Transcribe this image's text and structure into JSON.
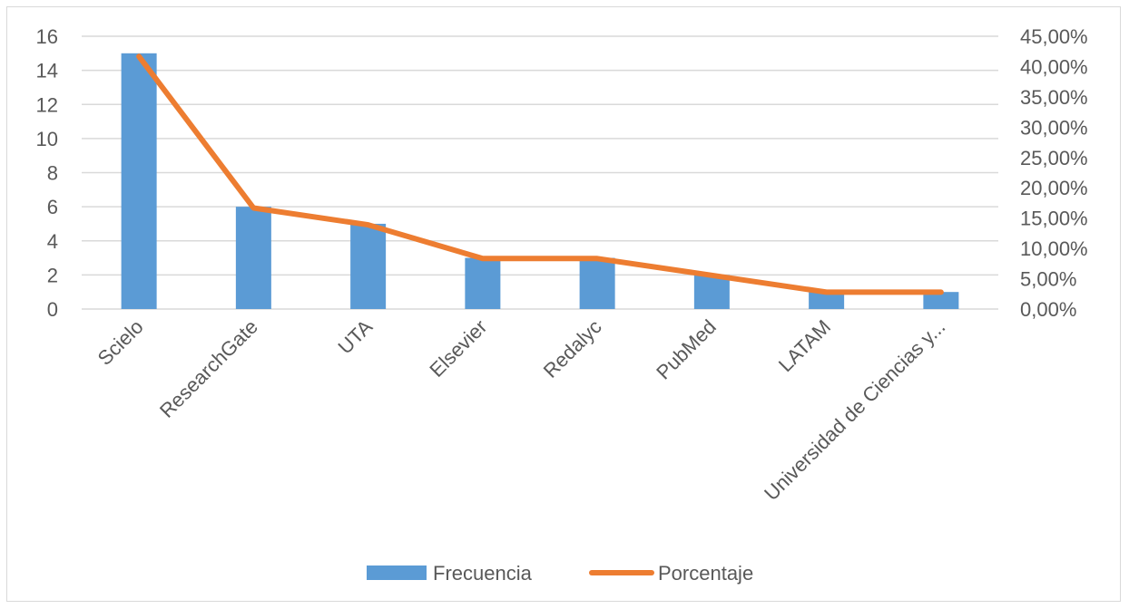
{
  "chart_data": {
    "type": "bar",
    "categories": [
      "Scielo",
      "ResearchGate",
      "UTA",
      "Elsevier",
      "Redalyc",
      "PubMed",
      "LATAM",
      "Universidad de Ciencias y..."
    ],
    "series": [
      {
        "name": "Frecuencia",
        "type": "bar",
        "axis": "left",
        "values": [
          15,
          6,
          5,
          3,
          3,
          2,
          1,
          1
        ]
      },
      {
        "name": "Porcentaje",
        "type": "line",
        "axis": "right",
        "values": [
          41.67,
          16.67,
          13.89,
          8.33,
          8.33,
          5.56,
          2.78,
          2.78
        ]
      }
    ],
    "y_left": {
      "min": 0,
      "max": 16,
      "step": 2,
      "ticks": [
        "0",
        "2",
        "4",
        "6",
        "8",
        "10",
        "12",
        "14",
        "16"
      ]
    },
    "y_right": {
      "min": 0,
      "max": 45,
      "step": 5,
      "ticks": [
        "0,00%",
        "5,00%",
        "10,00%",
        "15,00%",
        "20,00%",
        "25,00%",
        "30,00%",
        "35,00%",
        "40,00%",
        "45,00%"
      ]
    },
    "grid": true,
    "legend_position": "bottom",
    "colors": {
      "bar": "#5b9bd5",
      "line": "#ed7d31",
      "grid": "#d9d9d9",
      "text": "#595959"
    }
  }
}
